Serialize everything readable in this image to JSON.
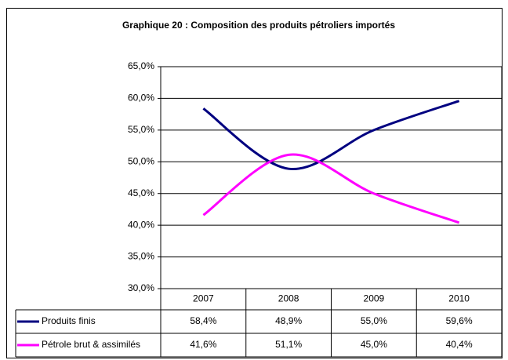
{
  "chart_data": {
    "type": "line",
    "title": "Graphique 20 : Composition des produits pétroliers importés",
    "categories": [
      "2007",
      "2008",
      "2009",
      "2010"
    ],
    "series": [
      {
        "name": "Produits finis",
        "color": "#000080",
        "values": [
          58.4,
          48.9,
          55.0,
          59.6
        ],
        "value_labels": [
          "58,4%",
          "48,9%",
          "55,0%",
          "59,6%"
        ]
      },
      {
        "name": "Pétrole brut & assimilés",
        "color": "#ff00ff",
        "values": [
          41.6,
          51.1,
          45.0,
          40.4
        ],
        "value_labels": [
          "41,6%",
          "51,1%",
          "45,0%",
          "40,4%"
        ]
      }
    ],
    "ylim": [
      30,
      65
    ],
    "yticks": [
      {
        "value": 30,
        "label": "30,0%"
      },
      {
        "value": 35,
        "label": "35,0%"
      },
      {
        "value": 40,
        "label": "40,0%"
      },
      {
        "value": 45,
        "label": "45,0%"
      },
      {
        "value": 50,
        "label": "50,0%"
      },
      {
        "value": 55,
        "label": "55,0%"
      },
      {
        "value": 60,
        "label": "60,0%"
      },
      {
        "value": 65,
        "label": "65,0%"
      }
    ],
    "grid": true
  }
}
